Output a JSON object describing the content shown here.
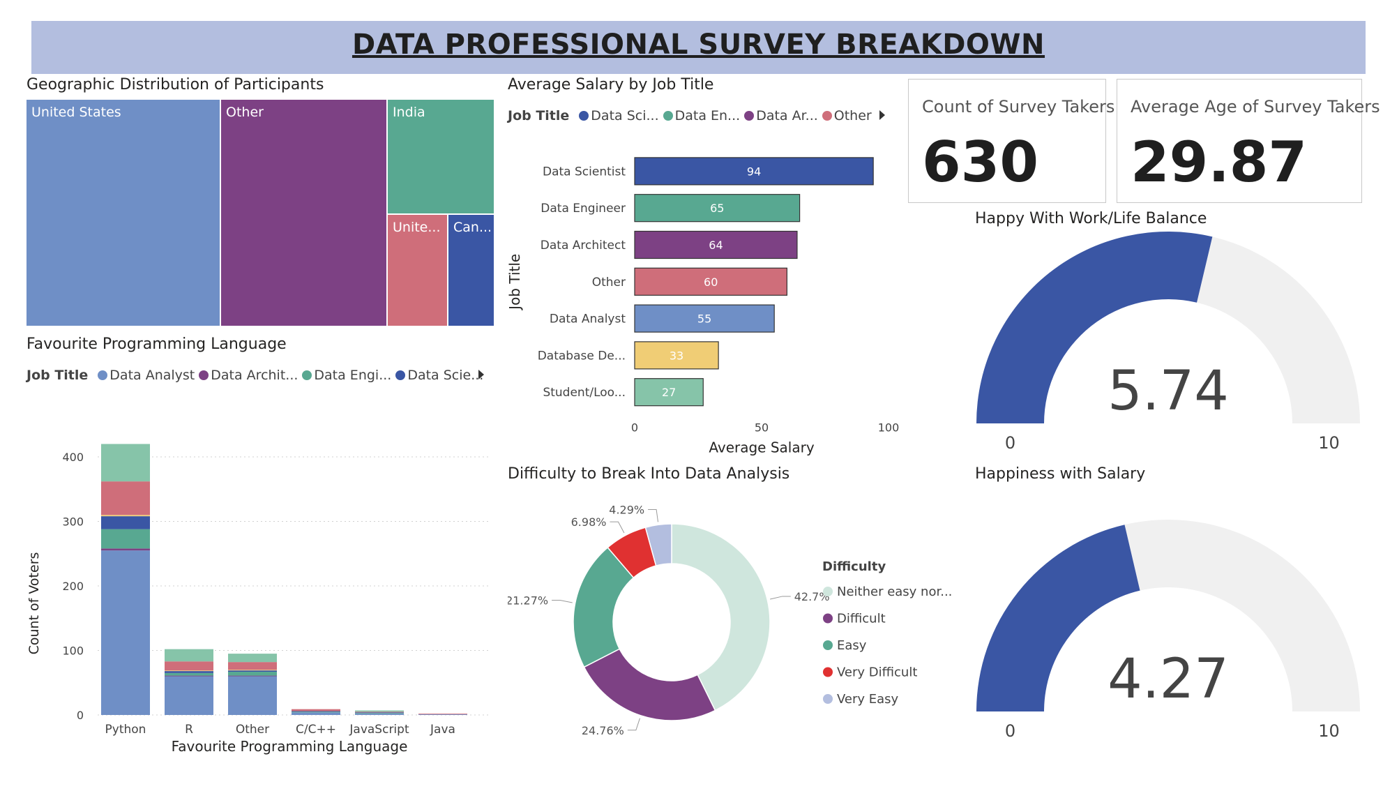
{
  "header": {
    "title": "DATA PROFESSIONAL SURVEY BREAKDOWN"
  },
  "geo": {
    "title": "Geographic Distribution of Participants",
    "cells": [
      {
        "label": "United States",
        "color": "#6f8fc6"
      },
      {
        "label": "Other",
        "color": "#7d4184"
      },
      {
        "label": "India",
        "color": "#58a891"
      },
      {
        "label": "Unite...",
        "color": "#cf6e7a"
      },
      {
        "label": "Can...",
        "color": "#3a56a4"
      }
    ]
  },
  "salary": {
    "title": "Average Salary by Job Title",
    "legend_title": "Job Title",
    "legend_items": [
      {
        "label": "Data Sci...",
        "color": "#3a56a4"
      },
      {
        "label": "Data En...",
        "color": "#58a891"
      },
      {
        "label": "Data Ar...",
        "color": "#7d4184"
      },
      {
        "label": "Other",
        "color": "#cf6e7a"
      }
    ]
  },
  "cards": {
    "count_label": "Count of Survey Takers",
    "count_value": "630",
    "age_label": "Average Age of Survey Takers",
    "age_value": "29.87"
  },
  "fav": {
    "title": "Favourite Programming Language",
    "legend_title": "Job Title",
    "legend_items": [
      {
        "label": "Data Analyst",
        "color": "#6f8fc6"
      },
      {
        "label": "Data Archit...",
        "color": "#7d4184"
      },
      {
        "label": "Data Engi...",
        "color": "#58a891"
      },
      {
        "label": "Data Scie...",
        "color": "#3a56a4"
      }
    ]
  },
  "difficulty": {
    "title": "Difficulty to Break Into Data Analysis",
    "legend_title": "Difficulty"
  },
  "gauges": {
    "worklife": {
      "title": "Happy With Work/Life Balance",
      "value": 5.74,
      "display": "5.74",
      "min": "0",
      "max": "10"
    },
    "salary": {
      "title": "Happiness with Salary",
      "value": 4.27,
      "display": "4.27",
      "min": "0",
      "max": "10"
    },
    "fill_color": "#3a56a4",
    "track_color": "#f0f0f0"
  },
  "chart_data": [
    {
      "type": "bar",
      "orientation": "horizontal",
      "title": "Average Salary by Job Title",
      "xlabel": "Average Salary",
      "ylabel": "Job Title",
      "xlim": [
        0,
        100
      ],
      "xticks": [
        "0",
        "50",
        "100"
      ],
      "categories": [
        "Data Scientist",
        "Data Engineer",
        "Data Architect",
        "Other",
        "Data Analyst",
        "Database De...",
        "Student/Loo..."
      ],
      "values": [
        94,
        65,
        64,
        60,
        55,
        33,
        27
      ],
      "value_labels": [
        "94",
        "65",
        "64",
        "60",
        "55",
        "33",
        "27"
      ],
      "colors": [
        "#3a56a4",
        "#58a891",
        "#7d4184",
        "#cf6e7a",
        "#6f8fc6",
        "#f0cd75",
        "#86c4a9"
      ]
    },
    {
      "type": "bar",
      "stacked": true,
      "title": "Favourite Programming Language",
      "xlabel": "Favourite Programming Language",
      "ylabel": "Count of Voters",
      "ylim": [
        0,
        440
      ],
      "yticks": [
        "0",
        "100",
        "200",
        "300",
        "400"
      ],
      "categories": [
        "Python",
        "R",
        "Other",
        "C/C++",
        "JavaScript",
        "Java"
      ],
      "series": [
        {
          "name": "Data Analyst",
          "color": "#6f8fc6",
          "values": [
            255,
            60,
            60,
            4,
            2,
            1
          ]
        },
        {
          "name": "Data Architect",
          "color": "#7d4184",
          "values": [
            3,
            1,
            1,
            0,
            0,
            0
          ]
        },
        {
          "name": "Data Engineer",
          "color": "#58a891",
          "values": [
            30,
            4,
            6,
            1,
            1,
            0
          ]
        },
        {
          "name": "Data Scientist",
          "color": "#3a56a4",
          "values": [
            20,
            3,
            2,
            1,
            1,
            0
          ]
        },
        {
          "color": "#f0cd75",
          "values": [
            2,
            1,
            1,
            0,
            0,
            0
          ]
        },
        {
          "color": "#cf6e7a",
          "values": [
            52,
            14,
            12,
            3,
            1,
            1
          ]
        },
        {
          "color": "#86c4a9",
          "values": [
            58,
            19,
            13,
            0,
            2,
            0
          ]
        }
      ]
    },
    {
      "type": "pie",
      "donut": true,
      "title": "Difficulty to Break Into Data Analysis",
      "legend_title": "Difficulty",
      "labels": [
        "Neither easy nor...",
        "Difficult",
        "Easy",
        "Very Difficult",
        "Very Easy"
      ],
      "values": [
        42.7,
        24.76,
        21.27,
        6.98,
        4.29
      ],
      "value_labels": [
        "42.7%",
        "24.76%",
        "21.27%",
        "6.98%",
        "4.29%"
      ],
      "colors": [
        "#cfe6dd",
        "#7d4184",
        "#58a891",
        "#e03131",
        "#b3bedf"
      ]
    }
  ]
}
